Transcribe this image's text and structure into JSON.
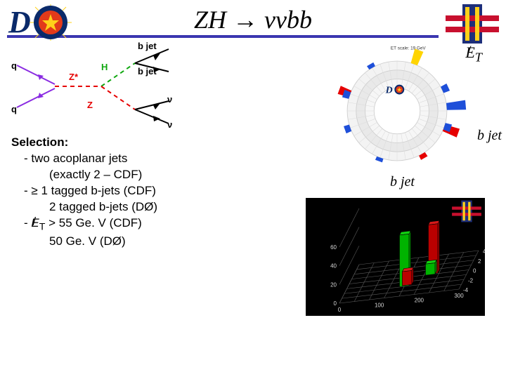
{
  "title": "ZH → ννbb",
  "logos": {
    "d0": {
      "letter": "D",
      "colors": {
        "bg": "#ffffff",
        "ring_outer": "#0a2a6a",
        "ring_inner": "#e23a1a",
        "star": "#ffd11a"
      }
    },
    "cdf": {
      "bar_color": "#c8102e",
      "panel_color": "#1e2f7a"
    }
  },
  "feynman": {
    "labels": {
      "q_top": "q",
      "q_bot": "q",
      "zstar": "Z*",
      "z": "Z",
      "h": "H",
      "bjet_top": "b jet",
      "bjet_bot": "b jet",
      "nu_top": "ν",
      "nu_bot": "ν"
    },
    "colors": {
      "quark_line": "#8a2be2",
      "zstar_line": "#e60000",
      "z_line": "#e60000",
      "h_line": "#10a810",
      "bjet_line": "#000000",
      "nu_line": "#000000"
    }
  },
  "selection": {
    "header": "Selection:",
    "line1": "- two acoplanar jets",
    "line1_sub": "(exactly 2 – CDF)",
    "line2": "- ≥ 1 tagged b-jets (CDF)",
    "line2_sub": "2 tagged b-jets (DØ)",
    "line3_pre": "- ",
    "line3_et_symbol": "E",
    "line3_et_sub": "T",
    "line3_rest": " > 55 Ge. V (CDF)",
    "line3_sub": "50 Ge. V (DØ)"
  },
  "event_display": {
    "caption": "ET scale: 19 GeV",
    "annotations": {
      "et": "E",
      "et_sub": "T",
      "bjet": "b jet"
    },
    "ring_colors": [
      "#d9d9d9",
      "#e9e9e9",
      "#f3f3f3",
      "#ffffff"
    ],
    "hit_colors": {
      "em": "#e60000",
      "had": "#1e4fd9",
      "met": "#ffd400"
    },
    "towers": [
      {
        "phi_deg": 5,
        "r": 1.0,
        "color": "#1e4fd9"
      },
      {
        "phi_deg": 25,
        "r": 0.35,
        "color": "#1e4fd9"
      },
      {
        "phi_deg": 70,
        "r": 0.78,
        "color": "#ffd400"
      },
      {
        "phi_deg": 120,
        "r": 0.22,
        "color": "#1e4fd9"
      },
      {
        "phi_deg": 160,
        "r": 0.62,
        "color": "#e60000"
      },
      {
        "phi_deg": 162,
        "r": 0.35,
        "color": "#1e4fd9"
      },
      {
        "phi_deg": 200,
        "r": 0.3,
        "color": "#1e4fd9"
      },
      {
        "phi_deg": 250,
        "r": 0.2,
        "color": "#1e4fd9"
      },
      {
        "phi_deg": 300,
        "r": 0.25,
        "color": "#e60000"
      },
      {
        "phi_deg": 340,
        "r": 0.8,
        "color": "#e60000"
      },
      {
        "phi_deg": 342,
        "r": 0.35,
        "color": "#1e4fd9"
      }
    ]
  },
  "lego": {
    "bg": "#000000",
    "grid_color": "#5a5a5a",
    "axis_color": "#d0d0d0",
    "y_ticks": [
      "0",
      "20",
      "40",
      "60"
    ],
    "x_ticks": [
      "0",
      "100",
      "200",
      "300"
    ],
    "z_ticks": [
      "-4",
      "-2",
      "0",
      "2",
      "4"
    ],
    "bars": [
      {
        "x": 0.5,
        "z": 0.3,
        "h": 0.92,
        "color": "#12d112"
      },
      {
        "x": 0.52,
        "z": 0.32,
        "h": 0.25,
        "color": "#d81a1a"
      },
      {
        "x": 0.7,
        "z": 0.55,
        "h": 0.88,
        "color": "#d81a1a"
      },
      {
        "x": 0.68,
        "z": 0.53,
        "h": 0.2,
        "color": "#12d112"
      }
    ]
  }
}
